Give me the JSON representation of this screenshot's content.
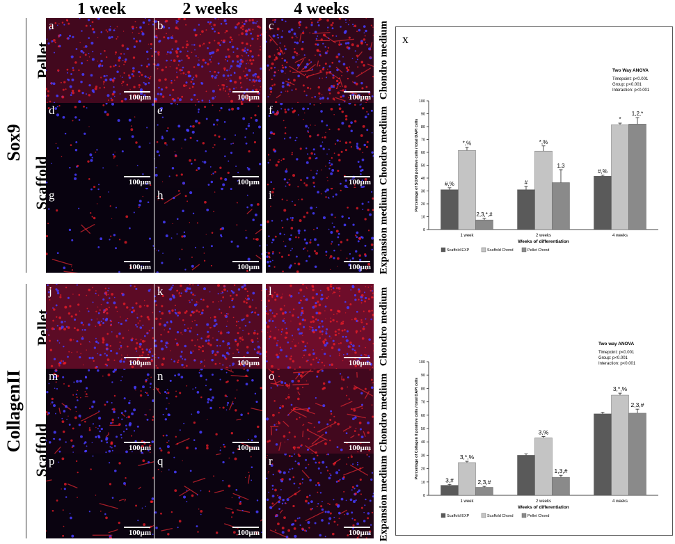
{
  "columns": [
    "1 week",
    "2 weeks",
    "4 weeks"
  ],
  "groups": {
    "sox9": "Sox9",
    "collagen": "CollagenII",
    "pellet1": "Pellet",
    "scaffold1": "Scaffold",
    "pellet2": "Pellet",
    "scaffold2": "Scaffold"
  },
  "row_media": [
    "Chondro medium",
    "Chondro medium",
    "Expansion medium",
    "Chondro medium",
    "Chondro medium",
    "Expansion medium"
  ],
  "panels": [
    {
      "letter": "a",
      "scale": "100µm"
    },
    {
      "letter": "b",
      "scale": "100µm"
    },
    {
      "letter": "c",
      "scale": "100µm"
    },
    {
      "letter": "d",
      "scale": "100µm"
    },
    {
      "letter": "e",
      "scale": "100µm"
    },
    {
      "letter": "f",
      "scale": "100µm"
    },
    {
      "letter": "g",
      "scale": "100µm"
    },
    {
      "letter": "h",
      "scale": "100µm"
    },
    {
      "letter": "i",
      "scale": "100µm"
    },
    {
      "letter": "j",
      "scale": "100µm"
    },
    {
      "letter": "k",
      "scale": "100µm"
    },
    {
      "letter": "l",
      "scale": "100µm"
    },
    {
      "letter": "m",
      "scale": "100µm"
    },
    {
      "letter": "n",
      "scale": "100µm"
    },
    {
      "letter": "o",
      "scale": "100µm"
    },
    {
      "letter": "p",
      "scale": "100µm"
    },
    {
      "letter": "q",
      "scale": "100µm"
    },
    {
      "letter": "r",
      "scale": "100µm"
    }
  ],
  "panel_label": "x",
  "chart_data": [
    {
      "type": "bar",
      "title": "",
      "categories": [
        "1 week",
        "2 weeks",
        "4 weeks"
      ],
      "series": [
        {
          "name": "Scaffold EXP",
          "values": [
            31,
            31,
            41.5
          ],
          "errors": [
            1.5,
            2.5,
            0.7
          ],
          "color": "#5a5a5a"
        },
        {
          "name": "Scaffold Chond",
          "values": [
            61.5,
            61,
            81.5
          ],
          "errors": [
            2.5,
            4,
            1.2
          ],
          "color": "#c4c4c4"
        },
        {
          "name": "Pellet Chond",
          "values": [
            7.5,
            36.5,
            82
          ],
          "errors": [
            1.2,
            10,
            5
          ],
          "color": "#8a8a8a"
        }
      ],
      "annotations": [
        [
          "#,%",
          "*,%",
          "2,3,*,#"
        ],
        [
          "#",
          "*,%",
          "1,3"
        ],
        [
          "#,%",
          "*",
          "1,2,*"
        ]
      ],
      "xlabel": "Weeks of differentiation",
      "ylabel": "Percentage of SOX9 positive cells / total DAPI cells",
      "ylim": [
        0,
        100
      ],
      "yticks": [
        0,
        10,
        20,
        30,
        40,
        50,
        60,
        70,
        80,
        90,
        100
      ],
      "stats_title": "Two Way ANOVA",
      "stats": [
        "Timepoint: p<0.001",
        "Group:      p<0.001",
        "Interaction: p<0.001"
      ]
    },
    {
      "type": "bar",
      "title": "",
      "categories": [
        "1 week",
        "2 weeks",
        "4 weeks"
      ],
      "series": [
        {
          "name": "Scaffold EXP",
          "values": [
            7.5,
            30,
            61
          ],
          "errors": [
            0.7,
            1,
            1.2
          ],
          "color": "#5a5a5a"
        },
        {
          "name": "Scaffold Chond",
          "values": [
            24.5,
            43,
            75
          ],
          "errors": [
            1,
            1,
            1.5
          ],
          "color": "#c4c4c4"
        },
        {
          "name": "Pellet Chond",
          "values": [
            6,
            13.5,
            61.5
          ],
          "errors": [
            0.7,
            1.5,
            3
          ],
          "color": "#8a8a8a"
        }
      ],
      "annotations": [
        [
          "3,#",
          "3,*,%",
          "2,3,#"
        ],
        [
          "",
          "3,%",
          "1,3,#"
        ],
        [
          "",
          "3,*,%",
          "2,3,#"
        ]
      ],
      "xlabel": "Weeks of differentiation",
      "ylabel": "Percentage of Collagen II positive cells / total DAPI cells",
      "ylim": [
        0,
        100
      ],
      "yticks": [
        0,
        10,
        20,
        30,
        40,
        50,
        60,
        70,
        80,
        90,
        100
      ],
      "stats_title": "Two way ANOVA",
      "stats": [
        "Timepoint: p<0.001",
        "Group:        p<0.001",
        "Interaction: p<0.001"
      ]
    }
  ]
}
